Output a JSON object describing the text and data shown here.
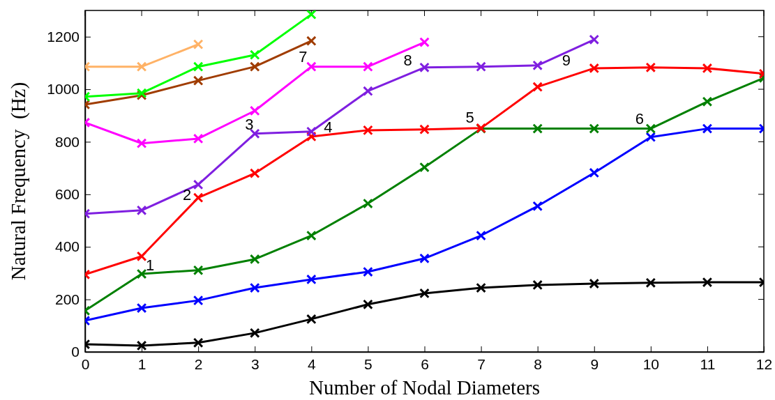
{
  "chart_data": {
    "type": "line",
    "xlabel": "Number of Nodal Diameters",
    "ylabel": "Natural Frequency  (Hz)",
    "x": [
      0,
      1,
      2,
      3,
      4,
      5,
      6,
      7,
      8,
      9,
      10,
      11,
      12
    ],
    "series": [
      {
        "color": "#000000",
        "values": [
          29,
          24,
          35,
          72,
          125,
          181,
          223,
          244,
          255,
          260,
          263,
          265,
          265
        ]
      },
      {
        "color": "#0000ff",
        "values": [
          119,
          167,
          196,
          244,
          276,
          305,
          356,
          443,
          555,
          682,
          818,
          850,
          850
        ]
      },
      {
        "color": "#008000",
        "values": [
          157,
          297,
          311,
          353,
          443,
          565,
          703,
          850,
          850,
          850,
          850,
          953,
          1043
        ]
      },
      {
        "color": "#ff0000",
        "values": [
          295,
          364,
          587,
          680,
          820,
          844,
          847,
          852,
          1009,
          1080,
          1083,
          1080,
          1059
        ]
      },
      {
        "color": "#7f1fe0",
        "values": [
          526,
          539,
          637,
          831,
          839,
          993,
          1083,
          1086,
          1091,
          1189,
          null,
          null,
          null
        ]
      },
      {
        "color": "#ff00ff",
        "values": [
          873,
          794,
          812,
          918,
          1086,
          1086,
          1179,
          null,
          null,
          null,
          null,
          null,
          null
        ]
      },
      {
        "color": "#a03c00",
        "values": [
          942,
          977,
          1033,
          1086,
          1184,
          null,
          null,
          null,
          null,
          null,
          null,
          null,
          null
        ]
      },
      {
        "color": "#00ff00",
        "values": [
          972,
          985,
          1086,
          1131,
          1285,
          null,
          null,
          null,
          null,
          null,
          null,
          null,
          null
        ]
      },
      {
        "color": "#ffb266",
        "values": [
          1086,
          1086,
          1171,
          null,
          null,
          null,
          null,
          null,
          null,
          null,
          null,
          null,
          null
        ]
      }
    ],
    "xlim": [
      0,
      12
    ],
    "xticks": [
      0,
      1,
      2,
      3,
      4,
      5,
      6,
      7,
      8,
      9,
      10,
      11,
      12
    ],
    "ylim": [
      0,
      1300
    ],
    "yticks": [
      0,
      200,
      400,
      600,
      800,
      1000,
      1200
    ],
    "marker": "cross",
    "line_style": "solid",
    "grid": false,
    "annotations": [
      {
        "text": "1",
        "x": 1,
        "y": 364
      },
      {
        "text": "2",
        "x": 2,
        "y": 587
      },
      {
        "text": "3",
        "x": 3,
        "y": 831
      },
      {
        "text": "4",
        "x": 4,
        "y": 839
      },
      {
        "text": "5",
        "x": 7,
        "y": 852
      },
      {
        "text": "6",
        "x": 10,
        "y": 850
      },
      {
        "text": "7",
        "x": 4,
        "y": 1086
      },
      {
        "text": "8",
        "x": 6,
        "y": 1083
      },
      {
        "text": "9",
        "x": 9,
        "y": 1080
      }
    ]
  }
}
